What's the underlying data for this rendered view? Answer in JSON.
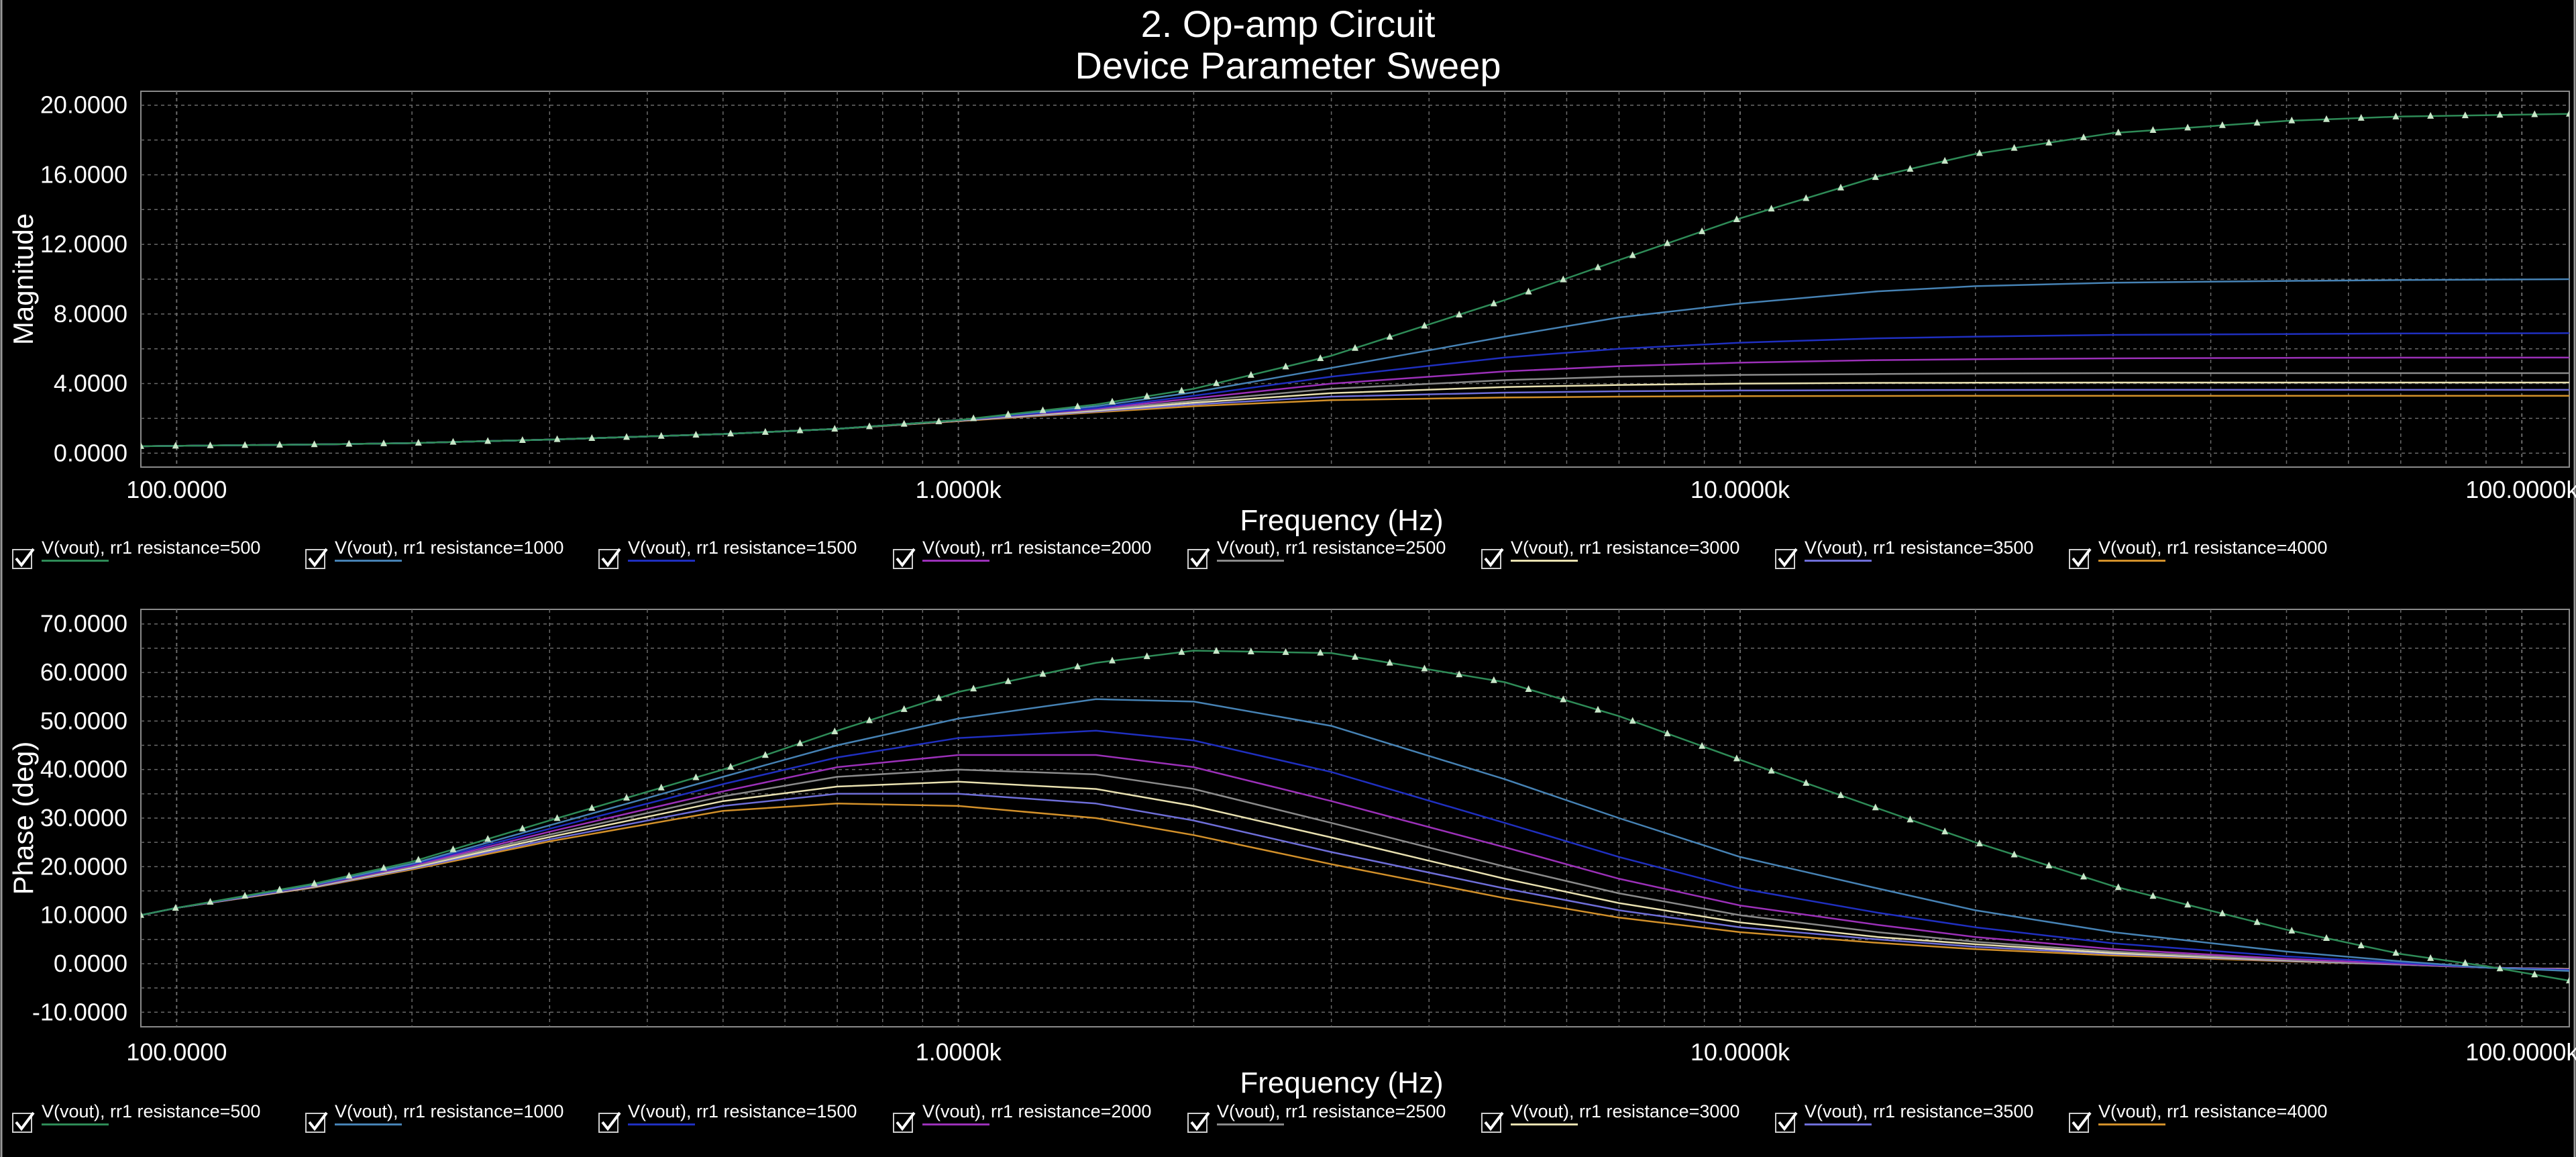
{
  "header": {
    "title": "2. Op-amp Circuit",
    "subtitle": "Device Parameter Sweep"
  },
  "colors": {
    "background": "#000000",
    "grid": "#6a6a6a",
    "axis_text": "#ffffff",
    "series": [
      "#2e8b57",
      "#4682b4",
      "#1f2fbf",
      "#9b30b8",
      "#8a8a8a",
      "#e8e0b0",
      "#6e6ed8",
      "#d2902a"
    ]
  },
  "icons": {
    "checkbox": "checkbox-checked-icon"
  },
  "legend": {
    "items": [
      {
        "label": "V(vout), rr1 resistance=500",
        "checked": true
      },
      {
        "label": "V(vout), rr1 resistance=1000",
        "checked": true
      },
      {
        "label": "V(vout), rr1 resistance=1500",
        "checked": true
      },
      {
        "label": "V(vout), rr1 resistance=2000",
        "checked": true
      },
      {
        "label": "V(vout), rr1 resistance=2500",
        "checked": true
      },
      {
        "label": "V(vout), rr1 resistance=3000",
        "checked": true
      },
      {
        "label": "V(vout), rr1 resistance=3500",
        "checked": true
      },
      {
        "label": "V(vout), rr1 resistance=4000",
        "checked": true
      }
    ]
  },
  "chart_data": [
    {
      "type": "line",
      "title": "",
      "xlabel": "Frequency (Hz)",
      "ylabel": "Magnitude",
      "xscale": "log",
      "xlim": [
        90,
        115000
      ],
      "ylim": [
        -0.8,
        20.8
      ],
      "grid": true,
      "legend_position": "below",
      "x_ticks": [
        100,
        1000,
        10000,
        100000
      ],
      "x_tick_labels": [
        "100.0000",
        "1.0000k",
        "10.0000k",
        "100.0000k"
      ],
      "y_ticks": [
        0,
        4,
        8,
        12,
        16,
        20
      ],
      "y_tick_labels": [
        "0.0000",
        "4.0000",
        "8.0000",
        "12.0000",
        "16.0000",
        "20.0000"
      ],
      "x": [
        90,
        100,
        150,
        200,
        300,
        500,
        700,
        1000,
        1500,
        2000,
        3000,
        5000,
        7000,
        10000,
        15000,
        20000,
        30000,
        50000,
        70000,
        115000
      ],
      "series": [
        {
          "name": "V(vout), rr1 resistance=500",
          "markers": true,
          "values": [
            0.4,
            0.42,
            0.5,
            0.58,
            0.78,
            1.1,
            1.4,
            1.9,
            2.8,
            3.7,
            5.6,
            8.8,
            11.1,
            13.5,
            15.9,
            17.2,
            18.4,
            19.1,
            19.35,
            19.5
          ]
        },
        {
          "name": "V(vout), rr1 resistance=1000",
          "values": [
            0.4,
            0.42,
            0.5,
            0.58,
            0.78,
            1.1,
            1.4,
            1.9,
            2.7,
            3.5,
            4.9,
            6.7,
            7.8,
            8.6,
            9.3,
            9.6,
            9.8,
            9.9,
            9.95,
            10.0
          ]
        },
        {
          "name": "V(vout), rr1 resistance=1500",
          "values": [
            0.4,
            0.42,
            0.5,
            0.58,
            0.78,
            1.1,
            1.4,
            1.9,
            2.6,
            3.3,
            4.4,
            5.5,
            6.0,
            6.35,
            6.6,
            6.7,
            6.8,
            6.85,
            6.88,
            6.9
          ]
        },
        {
          "name": "V(vout), rr1 resistance=2000",
          "values": [
            0.4,
            0.42,
            0.5,
            0.58,
            0.78,
            1.1,
            1.4,
            1.9,
            2.55,
            3.15,
            4.0,
            4.7,
            5.0,
            5.2,
            5.35,
            5.4,
            5.45,
            5.48,
            5.49,
            5.5
          ]
        },
        {
          "name": "V(vout), rr1 resistance=2500",
          "values": [
            0.4,
            0.42,
            0.5,
            0.58,
            0.78,
            1.1,
            1.4,
            1.9,
            2.5,
            3.0,
            3.7,
            4.2,
            4.4,
            4.5,
            4.55,
            4.58,
            4.6,
            4.6,
            4.6,
            4.6
          ]
        },
        {
          "name": "V(vout), rr1 resistance=3000",
          "values": [
            0.4,
            0.42,
            0.5,
            0.58,
            0.78,
            1.1,
            1.4,
            1.88,
            2.45,
            2.9,
            3.45,
            3.8,
            3.92,
            4.0,
            4.04,
            4.05,
            4.06,
            4.06,
            4.06,
            4.06
          ]
        },
        {
          "name": "V(vout), rr1 resistance=3500",
          "values": [
            0.4,
            0.42,
            0.5,
            0.58,
            0.78,
            1.1,
            1.4,
            1.86,
            2.4,
            2.8,
            3.25,
            3.48,
            3.56,
            3.6,
            3.62,
            3.63,
            3.64,
            3.64,
            3.64,
            3.64
          ]
        },
        {
          "name": "V(vout), rr1 resistance=4000",
          "values": [
            0.4,
            0.42,
            0.5,
            0.58,
            0.78,
            1.1,
            1.4,
            1.84,
            2.35,
            2.7,
            3.05,
            3.2,
            3.25,
            3.28,
            3.29,
            3.3,
            3.3,
            3.3,
            3.3,
            3.3
          ]
        }
      ]
    },
    {
      "type": "line",
      "title": "",
      "xlabel": "Frequency (Hz)",
      "ylabel": "Phase (deg)",
      "xscale": "log",
      "xlim": [
        90,
        115000
      ],
      "ylim": [
        -13,
        73
      ],
      "grid": true,
      "legend_position": "below",
      "x_ticks": [
        100,
        1000,
        10000,
        100000
      ],
      "x_tick_labels": [
        "100.0000",
        "1.0000k",
        "10.0000k",
        "100.0000k"
      ],
      "y_ticks": [
        -10,
        0,
        10,
        20,
        30,
        40,
        50,
        60,
        70
      ],
      "y_tick_labels": [
        "-10.0000",
        "0.0000",
        "10.0000",
        "20.0000",
        "30.0000",
        "40.0000",
        "50.0000",
        "60.0000",
        "70.0000"
      ],
      "x": [
        90,
        100,
        150,
        200,
        300,
        500,
        700,
        1000,
        1500,
        2000,
        3000,
        5000,
        7000,
        10000,
        15000,
        20000,
        30000,
        50000,
        70000,
        90000,
        115000
      ],
      "series": [
        {
          "name": "V(vout), rr1 resistance=500",
          "markers": true,
          "values": [
            10,
            11.5,
            16.5,
            21,
            29.5,
            40,
            48,
            56,
            62,
            64.5,
            64,
            58,
            51,
            42,
            32,
            25,
            16,
            7,
            2,
            -0.5,
            -3.5
          ]
        },
        {
          "name": "V(vout), rr1 resistance=1000",
          "values": [
            10,
            11.5,
            16.3,
            20.6,
            28.5,
            38.5,
            45,
            50.5,
            54.5,
            54,
            49,
            38,
            30,
            22,
            15.5,
            11,
            6.5,
            2.5,
            0.5,
            -0.8,
            -1.5
          ]
        },
        {
          "name": "V(vout), rr1 resistance=1500",
          "values": [
            10,
            11.5,
            16.2,
            20.4,
            27.8,
            37,
            42.5,
            46.5,
            48,
            46,
            39.5,
            29,
            22,
            15.5,
            10.5,
            7.5,
            4.2,
            1.5,
            0.2,
            -0.8,
            -1.3
          ]
        },
        {
          "name": "V(vout), rr1 resistance=2000",
          "values": [
            10,
            11.5,
            16.1,
            20.2,
            27.2,
            35.5,
            40.5,
            43,
            43,
            40.5,
            33.5,
            24,
            17.5,
            12,
            8,
            5.5,
            3,
            1,
            0,
            -0.8,
            -1.2
          ]
        },
        {
          "name": "V(vout), rr1 resistance=2500",
          "values": [
            10,
            11.5,
            16.0,
            20.0,
            26.6,
            34.5,
            38.5,
            40,
            39,
            36,
            29,
            20,
            14.5,
            10,
            6.5,
            4.5,
            2.5,
            0.8,
            -0.1,
            -0.8,
            -1.2
          ]
        },
        {
          "name": "V(vout), rr1 resistance=3000",
          "values": [
            10,
            11.5,
            15.9,
            19.8,
            26.1,
            33.5,
            36.5,
            37.5,
            36,
            32.5,
            26,
            17.5,
            12.5,
            8.5,
            5.5,
            4,
            2.2,
            0.7,
            -0.1,
            -0.8,
            -1.1
          ]
        },
        {
          "name": "V(vout), rr1 resistance=3500",
          "values": [
            10,
            11.5,
            15.8,
            19.6,
            25.6,
            32.5,
            35,
            35,
            33,
            29.5,
            23,
            15.5,
            11,
            7.5,
            5,
            3.5,
            2,
            0.6,
            -0.2,
            -0.8,
            -1.1
          ]
        },
        {
          "name": "V(vout), rr1 resistance=4000",
          "values": [
            10,
            11.5,
            15.7,
            19.4,
            25.2,
            31.5,
            33,
            32.5,
            30,
            26.5,
            20.5,
            13.5,
            9.5,
            6.5,
            4.3,
            3,
            1.7,
            0.5,
            -0.2,
            -0.8,
            -1.1
          ]
        }
      ]
    }
  ]
}
